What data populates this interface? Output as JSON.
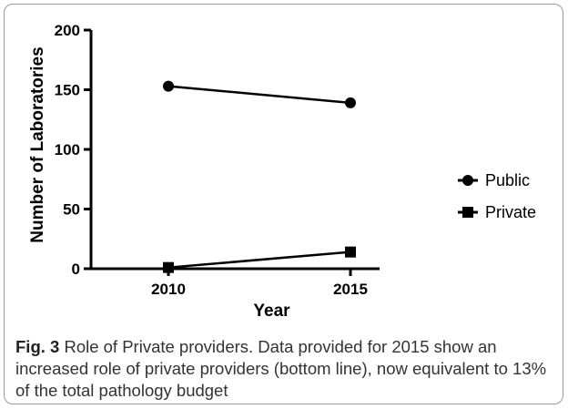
{
  "chart_data": {
    "type": "line",
    "x": [
      "2010",
      "2015"
    ],
    "xlabel": "Year",
    "ylabel": "Number of Laboratories",
    "ylim": [
      0,
      200
    ],
    "yticks": [
      0,
      50,
      100,
      150,
      200
    ],
    "legend": "right",
    "grid": false,
    "series": [
      {
        "name": "Public",
        "marker": "circle",
        "values": [
          153,
          139
        ]
      },
      {
        "name": "Private",
        "marker": "square",
        "values": [
          1,
          14
        ]
      }
    ]
  },
  "caption": {
    "label": "Fig. 3",
    "text": "Role of Private providers. Data provided for 2015 show an increased role of private providers (bottom line), now equivalent to 13% of the total pathology budget"
  },
  "colors": {
    "line": "#000000",
    "caption_text": "#333333",
    "border": "#9a9a9a"
  }
}
